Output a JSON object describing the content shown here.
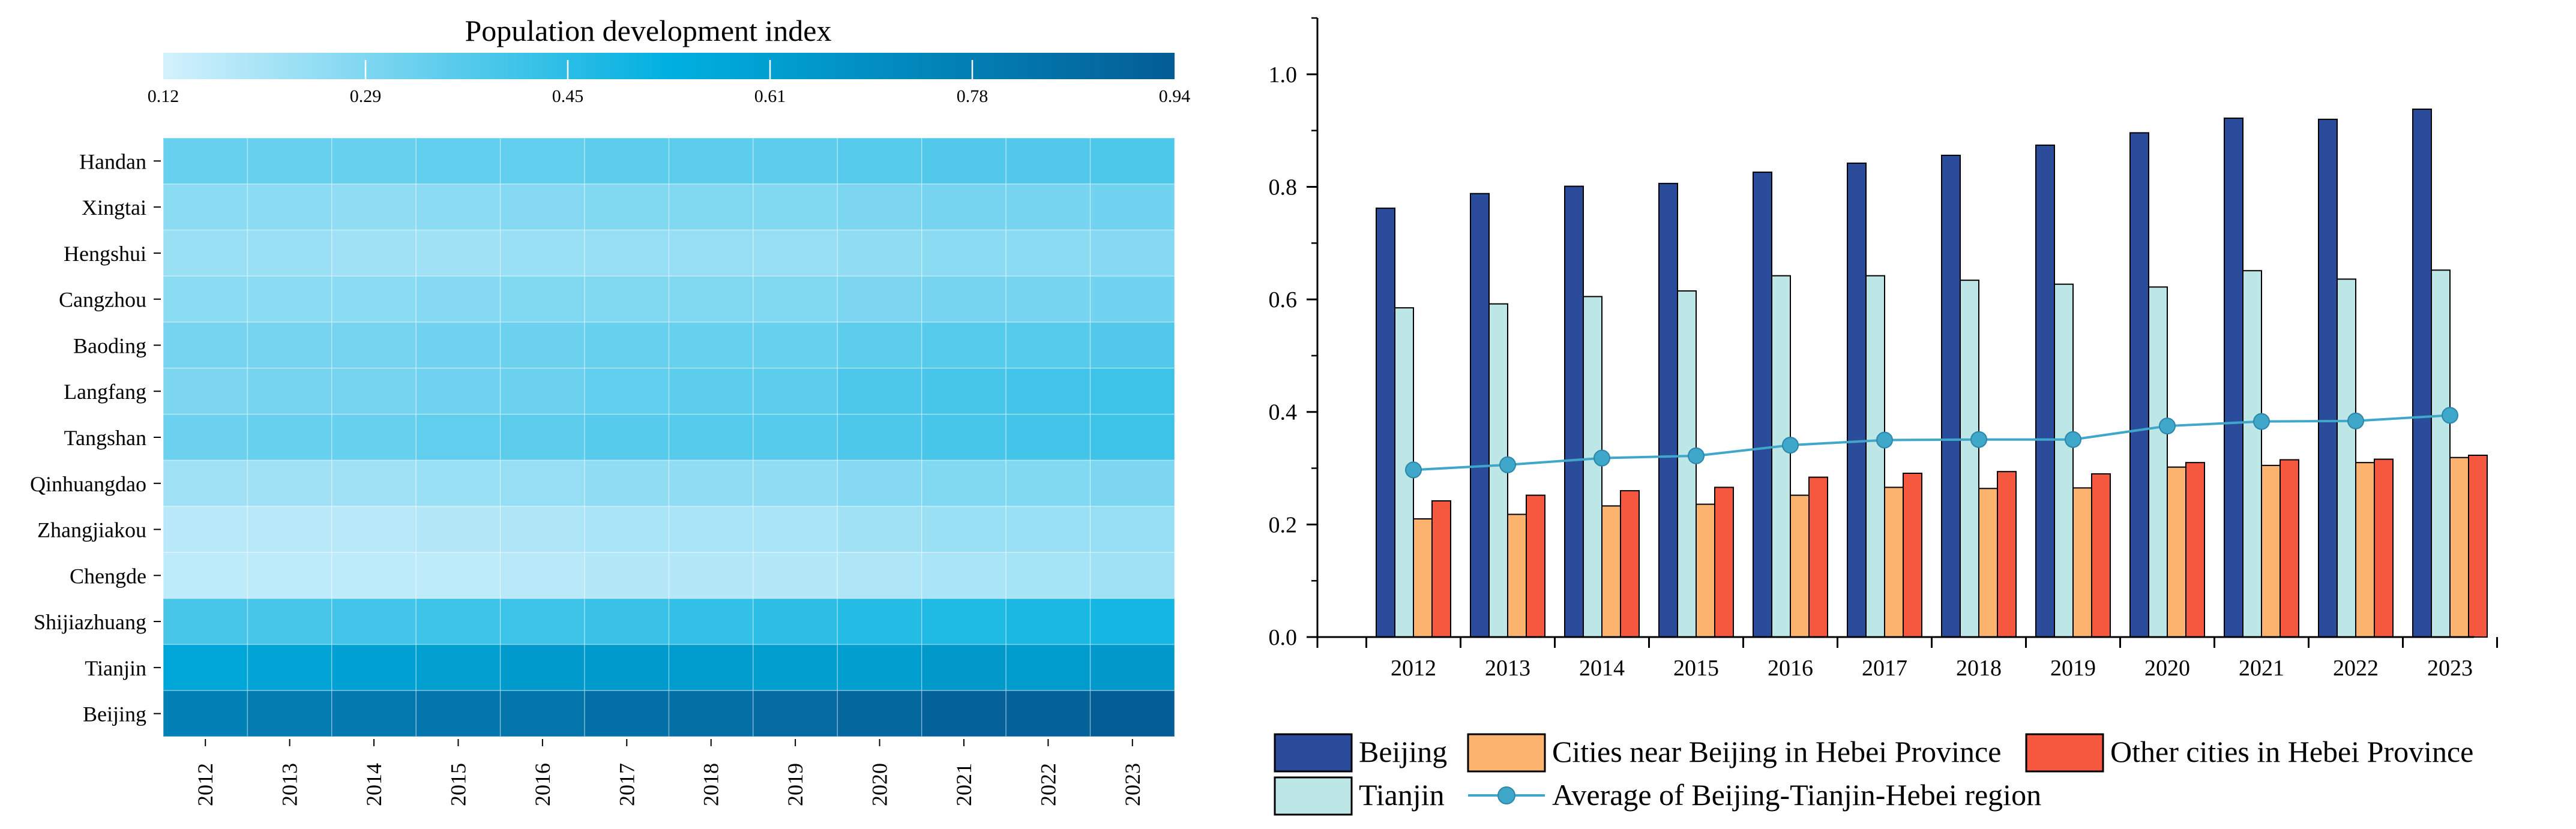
{
  "chart_data": [
    {
      "type": "heatmap",
      "title": "Population development index",
      "colorbar": {
        "min": 0.12,
        "max": 0.94,
        "tick_labels": [
          "0.12",
          "0.29",
          "0.45",
          "0.61",
          "0.78",
          "0.94"
        ]
      },
      "x": [
        "2012",
        "2013",
        "2014",
        "2015",
        "2016",
        "2017",
        "2018",
        "2019",
        "2020",
        "2021",
        "2022",
        "2023"
      ],
      "rows": [
        "Handan",
        "Xingtai",
        "Hengshui",
        "Cangzhou",
        "Baoding",
        "Langfang",
        "Tangshan",
        "Qinhuangdao",
        "Zhangjiakou",
        "Chengde",
        "Shijiazhuang",
        "Tianjin",
        "Beijing"
      ],
      "values": [
        [
          0.33,
          0.33,
          0.33,
          0.34,
          0.34,
          0.35,
          0.35,
          0.35,
          0.36,
          0.37,
          0.37,
          0.38
        ],
        [
          0.26,
          0.26,
          0.25,
          0.26,
          0.27,
          0.28,
          0.28,
          0.28,
          0.29,
          0.3,
          0.3,
          0.31
        ],
        [
          0.23,
          0.23,
          0.22,
          0.22,
          0.23,
          0.24,
          0.24,
          0.24,
          0.25,
          0.26,
          0.26,
          0.27
        ],
        [
          0.26,
          0.26,
          0.26,
          0.27,
          0.28,
          0.28,
          0.28,
          0.28,
          0.29,
          0.3,
          0.3,
          0.31
        ],
        [
          0.3,
          0.3,
          0.3,
          0.31,
          0.32,
          0.33,
          0.33,
          0.33,
          0.35,
          0.36,
          0.36,
          0.37
        ],
        [
          0.29,
          0.3,
          0.3,
          0.31,
          0.32,
          0.34,
          0.35,
          0.35,
          0.38,
          0.39,
          0.4,
          0.41
        ],
        [
          0.32,
          0.33,
          0.33,
          0.34,
          0.35,
          0.36,
          0.36,
          0.36,
          0.38,
          0.39,
          0.4,
          0.41
        ],
        [
          0.22,
          0.22,
          0.22,
          0.23,
          0.24,
          0.25,
          0.25,
          0.25,
          0.27,
          0.28,
          0.28,
          0.29
        ],
        [
          0.17,
          0.17,
          0.17,
          0.18,
          0.19,
          0.2,
          0.2,
          0.2,
          0.22,
          0.23,
          0.23,
          0.24
        ],
        [
          0.16,
          0.16,
          0.16,
          0.16,
          0.17,
          0.18,
          0.18,
          0.18,
          0.19,
          0.2,
          0.21,
          0.22
        ],
        [
          0.39,
          0.39,
          0.4,
          0.41,
          0.41,
          0.42,
          0.43,
          0.44,
          0.46,
          0.47,
          0.48,
          0.49
        ],
        [
          0.58,
          0.59,
          0.6,
          0.61,
          0.64,
          0.64,
          0.63,
          0.62,
          0.62,
          0.65,
          0.63,
          0.65
        ],
        [
          0.76,
          0.79,
          0.8,
          0.81,
          0.82,
          0.84,
          0.85,
          0.87,
          0.89,
          0.92,
          0.92,
          0.94
        ]
      ]
    },
    {
      "type": "bar",
      "title": "",
      "categories": [
        "2012",
        "2013",
        "2014",
        "2015",
        "2016",
        "2017",
        "2018",
        "2019",
        "2020",
        "2021",
        "2022",
        "2023"
      ],
      "ylim": [
        0,
        1.1
      ],
      "yticks": [
        0.0,
        0.2,
        0.4,
        0.6,
        0.8,
        1.0
      ],
      "ytick_labels": [
        "0.0",
        "0.2",
        "0.4",
        "0.6",
        "0.8",
        "1.0"
      ],
      "series": [
        {
          "name": "Beijing",
          "kind": "bar",
          "color": "#2a4c9b",
          "values": [
            0.762,
            0.788,
            0.801,
            0.806,
            0.826,
            0.842,
            0.856,
            0.874,
            0.896,
            0.922,
            0.92,
            0.938
          ]
        },
        {
          "name": "Tianjin",
          "kind": "bar",
          "color": "#bde6e6",
          "values": [
            0.585,
            0.592,
            0.605,
            0.615,
            0.642,
            0.642,
            0.634,
            0.627,
            0.622,
            0.651,
            0.636,
            0.652
          ]
        },
        {
          "name": "Cities near Beijing in Hebei Province",
          "kind": "bar",
          "color": "#fbb36f",
          "values": [
            0.21,
            0.218,
            0.233,
            0.236,
            0.252,
            0.266,
            0.264,
            0.265,
            0.302,
            0.305,
            0.31,
            0.319
          ]
        },
        {
          "name": "Other cities in Hebei Province",
          "kind": "bar",
          "color": "#f5583f",
          "values": [
            0.242,
            0.252,
            0.26,
            0.266,
            0.284,
            0.291,
            0.294,
            0.29,
            0.31,
            0.315,
            0.316,
            0.323
          ]
        },
        {
          "name": "Average of Beijing-Tianjin-Hebei region",
          "kind": "line",
          "color": "#3fa7c9",
          "values": [
            0.297,
            0.306,
            0.318,
            0.322,
            0.341,
            0.35,
            0.351,
            0.351,
            0.375,
            0.383,
            0.384,
            0.394
          ]
        }
      ],
      "legend": {
        "row1": [
          "Beijing",
          "Cities near Beijing in Hebei Province",
          "Other cities in Hebei Province"
        ],
        "row2": [
          "Tianjin",
          "Average of Beijing-Tianjin-Hebei region"
        ]
      }
    }
  ]
}
